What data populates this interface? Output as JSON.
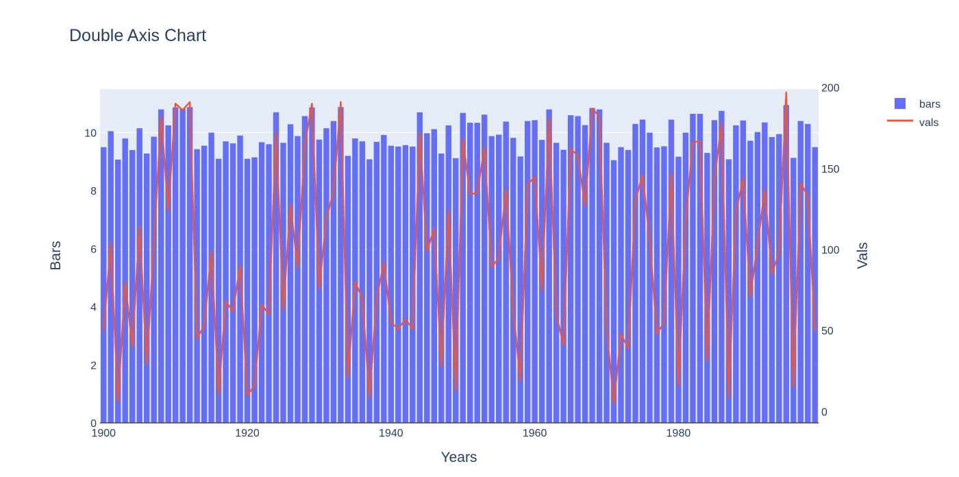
{
  "chart_data": {
    "type": "bar+line",
    "title": "Double Axis Chart",
    "xlabel": "Years",
    "ylabel_left": "Bars",
    "ylabel_right": "Vals",
    "xlim": [
      1899.5,
      1999.5
    ],
    "ylim_left": [
      0,
      11.5
    ],
    "ylim_right": [
      -7,
      199
    ],
    "x_ticks": [
      1900,
      1920,
      1940,
      1960,
      1980
    ],
    "y_left_ticks": [
      0,
      2,
      4,
      6,
      8,
      10
    ],
    "y_right_ticks": [
      0,
      50,
      100,
      150,
      200
    ],
    "grid": true,
    "legend_position": "top-right",
    "colors": {
      "bars": "#636efa",
      "vals": "#ef553b",
      "plot_bg": "#e5ecf6"
    },
    "x": [
      1900,
      1901,
      1902,
      1903,
      1904,
      1905,
      1906,
      1907,
      1908,
      1909,
      1910,
      1911,
      1912,
      1913,
      1914,
      1915,
      1916,
      1917,
      1918,
      1919,
      1920,
      1921,
      1922,
      1923,
      1924,
      1925,
      1926,
      1927,
      1928,
      1929,
      1930,
      1931,
      1932,
      1933,
      1934,
      1935,
      1936,
      1937,
      1938,
      1939,
      1940,
      1941,
      1942,
      1943,
      1944,
      1945,
      1946,
      1947,
      1948,
      1949,
      1950,
      1951,
      1952,
      1953,
      1954,
      1955,
      1956,
      1957,
      1958,
      1959,
      1960,
      1961,
      1962,
      1963,
      1964,
      1965,
      1966,
      1967,
      1968,
      1969,
      1970,
      1971,
      1972,
      1973,
      1974,
      1975,
      1976,
      1977,
      1978,
      1979,
      1980,
      1981,
      1982,
      1983,
      1984,
      1985,
      1986,
      1987,
      1988,
      1989,
      1990,
      1991,
      1992,
      1993,
      1994,
      1995,
      1996,
      1997,
      1998,
      1999
    ],
    "series": [
      {
        "name": "bars",
        "type": "bar",
        "axis": "left",
        "values": [
          9.5,
          10.05,
          9.07,
          9.8,
          9.4,
          10.15,
          9.28,
          9.86,
          10.8,
          10.25,
          10.87,
          10.83,
          10.88,
          9.43,
          9.55,
          10.0,
          9.1,
          9.7,
          9.63,
          9.9,
          9.1,
          9.15,
          9.67,
          9.6,
          10.7,
          9.65,
          10.29,
          9.88,
          10.57,
          10.87,
          9.76,
          10.15,
          10.4,
          10.88,
          9.2,
          9.8,
          9.7,
          9.08,
          9.68,
          9.92,
          9.55,
          9.52,
          9.57,
          9.52,
          10.7,
          9.98,
          10.12,
          9.28,
          10.25,
          9.12,
          10.68,
          10.34,
          10.34,
          10.62,
          9.88,
          9.93,
          10.38,
          9.82,
          9.18,
          10.4,
          10.43,
          9.75,
          10.8,
          9.65,
          9.41,
          10.6,
          10.57,
          10.26,
          10.85,
          10.8,
          9.65,
          9.05,
          9.5,
          9.4,
          10.3,
          10.45,
          10.0,
          9.49,
          9.53,
          10.45,
          9.17,
          10.0,
          10.65,
          10.65,
          9.3,
          10.43,
          10.75,
          9.08,
          10.25,
          10.42,
          9.72,
          10.02,
          10.35,
          9.85,
          9.95,
          10.95,
          9.13,
          10.4,
          10.3,
          9.5
        ]
      },
      {
        "name": "vals",
        "type": "line",
        "axis": "right",
        "values": [
          50,
          104,
          6,
          80,
          40,
          114,
          29,
          104,
          182,
          124,
          190,
          186,
          191,
          45,
          53,
          99,
          11,
          68,
          62,
          90,
          10,
          16,
          66,
          60,
          172,
          63,
          128,
          89,
          165,
          190,
          76,
          119,
          136,
          191,
          21,
          80,
          70,
          9,
          70,
          92,
          55,
          51,
          57,
          51,
          172,
          99,
          113,
          28,
          124,
          13,
          168,
          134,
          135,
          163,
          89,
          95,
          137,
          63,
          19,
          140,
          145,
          75,
          181,
          60,
          41,
          162,
          158,
          127,
          187,
          182,
          51,
          5,
          48,
          39,
          130,
          146,
          106,
          48,
          55,
          147,
          16,
          118,
          166,
          167,
          31,
          143,
          178,
          9,
          123,
          144,
          71,
          103,
          137,
          85,
          98,
          197,
          15,
          141,
          133,
          50
        ]
      }
    ]
  }
}
